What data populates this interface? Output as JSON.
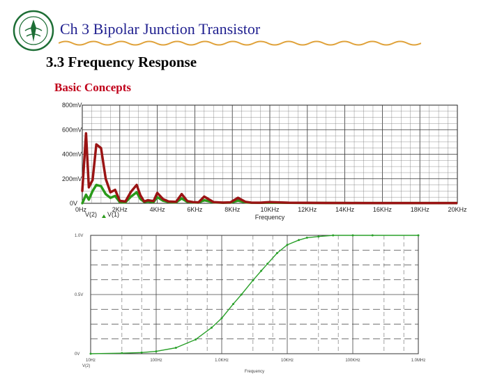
{
  "header": {
    "title": "Ch 3 Bipolar Junction Transistor",
    "subtitle": "3.3 Frequency Response",
    "section": "Basic Concepts",
    "accent_color": "#1f1f8f",
    "section_color": "#c0001a",
    "logo_icon": "university-seal-icon"
  },
  "chart_data": [
    {
      "type": "line",
      "ylim": [
        0,
        800
      ],
      "xlim": [
        0,
        20
      ],
      "y_ticks": [
        "0V",
        "200mV",
        "400mV",
        "600mV",
        "800mV"
      ],
      "x_ticks": [
        "0Hz",
        "2KHz",
        "4KHz",
        "6KHz",
        "8KHz",
        "10KHz",
        "12KHz",
        "14KHz",
        "16KHz",
        "18KHz",
        "20KHz"
      ],
      "xlabel": "Frequency",
      "grid": true,
      "series": [
        {
          "name": "V(2)",
          "color": "#2a9a1a",
          "x": [
            0.0,
            0.2,
            0.35,
            0.55,
            0.75,
            1.0,
            1.25,
            1.5,
            1.75,
            2.0,
            2.3,
            2.6,
            2.9,
            3.1,
            3.3,
            3.5,
            3.8,
            4.0,
            4.3,
            4.6,
            5.0,
            5.3,
            5.6,
            5.9,
            6.2,
            6.5,
            7.0,
            7.5,
            7.9,
            8.3,
            8.7,
            9.0,
            9.5,
            10.0,
            11.0,
            12.0,
            13.0,
            14.0,
            15.0,
            16.0,
            17.0,
            18.0,
            19.0,
            20.0
          ],
          "values": [
            0,
            70,
            30,
            100,
            150,
            140,
            75,
            45,
            60,
            10,
            8,
            55,
            90,
            35,
            12,
            15,
            10,
            50,
            22,
            10,
            8,
            40,
            12,
            8,
            6,
            25,
            8,
            5,
            6,
            22,
            8,
            5,
            4,
            6,
            4,
            3,
            3,
            2,
            2,
            2,
            2,
            2,
            2,
            2
          ]
        },
        {
          "name": "V(1)",
          "color": "#9a1414",
          "x": [
            0.0,
            0.2,
            0.35,
            0.55,
            0.75,
            1.0,
            1.25,
            1.5,
            1.75,
            2.0,
            2.3,
            2.6,
            2.9,
            3.1,
            3.3,
            3.5,
            3.8,
            4.0,
            4.3,
            4.6,
            5.0,
            5.3,
            5.6,
            5.9,
            6.2,
            6.5,
            7.0,
            7.5,
            7.9,
            8.3,
            8.7,
            9.0,
            9.5,
            10.0,
            11.0,
            12.0,
            13.0,
            14.0,
            15.0,
            16.0,
            17.0,
            18.0,
            19.0,
            20.0
          ],
          "values": [
            100,
            570,
            130,
            190,
            480,
            450,
            200,
            90,
            110,
            20,
            15,
            95,
            150,
            65,
            15,
            25,
            18,
            85,
            35,
            15,
            12,
            75,
            18,
            10,
            8,
            55,
            10,
            6,
            8,
            45,
            12,
            6,
            5,
            10,
            5,
            4,
            3,
            3,
            2,
            2,
            2,
            2,
            2,
            2
          ]
        }
      ]
    },
    {
      "type": "line",
      "log_x": true,
      "xlim": [
        10,
        1000000
      ],
      "ylim": [
        0,
        1.0
      ],
      "y_ticks": [
        "0V",
        "0.5V",
        "1.0V"
      ],
      "x_ticks": [
        "10Hz",
        "100Hz",
        "1.0KHz",
        "10KHz",
        "100KHz",
        "1.0MHz"
      ],
      "xlabel": "Frequency",
      "grid": true,
      "series": [
        {
          "name": "V(2)",
          "color": "#2aa02a",
          "x": [
            10,
            30,
            60,
            100,
            200,
            400,
            700,
            1000,
            1500,
            2000,
            3000,
            4000,
            5000,
            7000,
            10000,
            15000,
            20000,
            30000,
            50000,
            100000,
            200000,
            1000000
          ],
          "values": [
            0.0,
            0.005,
            0.01,
            0.02,
            0.05,
            0.12,
            0.22,
            0.3,
            0.42,
            0.5,
            0.62,
            0.7,
            0.76,
            0.85,
            0.92,
            0.96,
            0.98,
            0.99,
            1.0,
            1.0,
            1.0,
            1.0
          ]
        }
      ]
    }
  ]
}
